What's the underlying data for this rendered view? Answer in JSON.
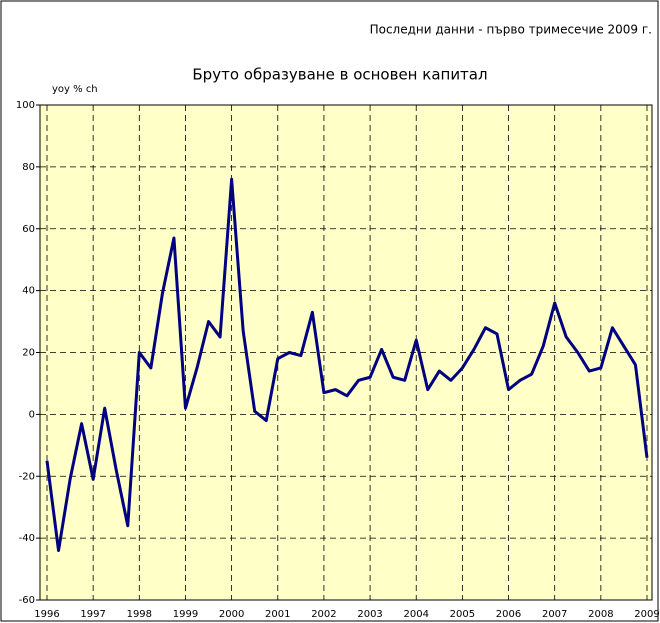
{
  "chart_data": {
    "type": "line",
    "note": "Последни данни - първо тримесечие 2009 г.",
    "title": "Бруто образуване в основен капитал",
    "y_axis_label": "yoy % ch",
    "categories": [
      "1996",
      null,
      null,
      null,
      "1997",
      null,
      null,
      null,
      "1998",
      null,
      null,
      null,
      "1999",
      null,
      null,
      null,
      "2000",
      null,
      null,
      null,
      "2001",
      null,
      null,
      null,
      "2002",
      null,
      null,
      null,
      "2003",
      null,
      null,
      null,
      "2004",
      null,
      null,
      null,
      "2005",
      null,
      null,
      null,
      "2006",
      null,
      null,
      null,
      "2007",
      null,
      null,
      null,
      "2008",
      null,
      null,
      null,
      "2009"
    ],
    "values": [
      -15,
      -44,
      -21,
      -3,
      -21,
      2,
      -18,
      -36,
      20,
      15,
      39,
      57,
      2,
      15,
      30,
      25,
      76,
      27,
      1,
      -2,
      18,
      20,
      19,
      33,
      7,
      8,
      6,
      11,
      12,
      21,
      12,
      11,
      24,
      8,
      14,
      11,
      15,
      21,
      28,
      26,
      8,
      11,
      13,
      22,
      36,
      25,
      20,
      14,
      15,
      28,
      22,
      16,
      -14
    ],
    "color": "#000080",
    "ylim": [
      -60,
      100
    ],
    "yticks": [
      -60,
      -40,
      -20,
      0,
      20,
      40,
      60,
      80,
      100
    ],
    "grid": true
  }
}
